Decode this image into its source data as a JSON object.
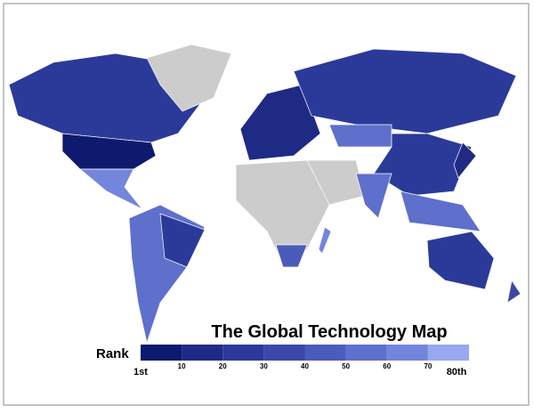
{
  "title": "The Global Technology Map",
  "legend": {
    "title": "Rank",
    "colors": [
      "#0d1a6e",
      "#1f2a85",
      "#2b3a99",
      "#3a49a8",
      "#4b5bba",
      "#5e6fcc",
      "#7485dc",
      "#97a8f0"
    ],
    "labels": [
      "1st",
      "10",
      "20",
      "30",
      "40",
      "50",
      "60",
      "70",
      "80th"
    ]
  }
}
